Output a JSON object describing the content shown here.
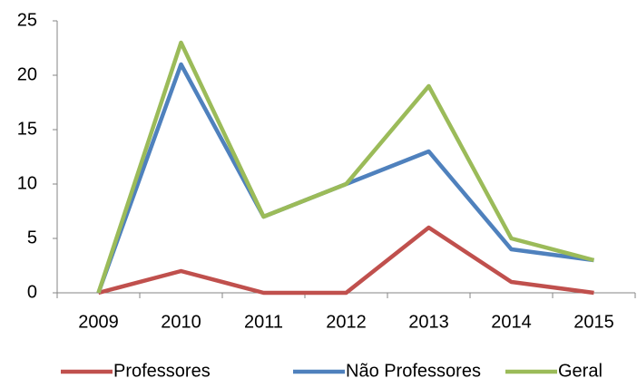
{
  "chart_data": {
    "type": "line",
    "categories": [
      "2009",
      "2010",
      "2011",
      "2012",
      "2013",
      "2014",
      "2015"
    ],
    "series": [
      {
        "name": "Professores",
        "color": "#c0504d",
        "values": [
          0,
          2,
          0,
          0,
          6,
          1,
          0
        ]
      },
      {
        "name": "Não Professores",
        "color": "#4f81bd",
        "values": [
          0,
          21,
          7,
          10,
          13,
          4,
          3
        ]
      },
      {
        "name": "Geral",
        "color": "#9bbb59",
        "values": [
          0,
          23,
          7,
          10,
          19,
          5,
          3
        ]
      }
    ],
    "ylim": [
      0,
      25
    ],
    "yticks": [
      0,
      5,
      10,
      15,
      20,
      25
    ],
    "grid": false,
    "legend": "bottom"
  }
}
